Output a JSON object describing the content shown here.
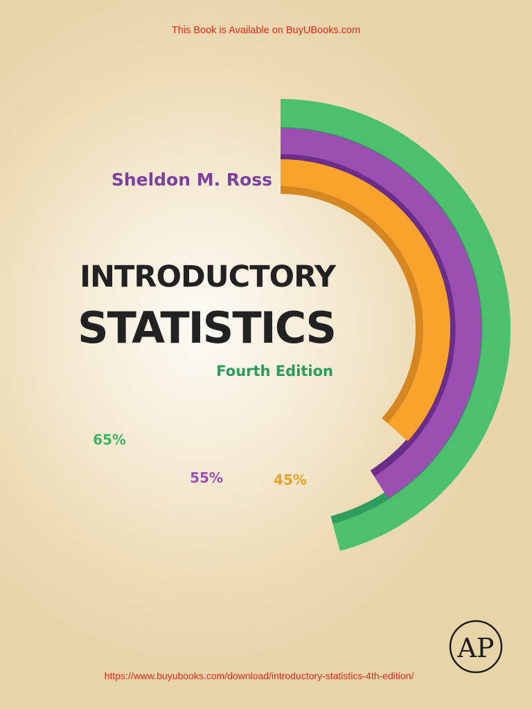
{
  "banner_top": "This Book is Available on BuyUBooks.com",
  "banner_bottom": "https://www.buyubooks.com/download/introductory-statistics-4th-edition/",
  "author": "Sheldon M. Ross",
  "title_line1": "INTRODUCTORY",
  "title_line2": "STATISTICS",
  "edition": "Fourth Edition",
  "publisher_logo_text": "AP",
  "colors": {
    "accent_red": "#e8261c",
    "green": "#4cc06d",
    "green_dark": "#2f9d5e",
    "purple": "#9b4fb0",
    "purple_dark": "#6a2d8a",
    "orange": "#f8a42c",
    "orange_dark": "#d68722",
    "title": "#222222"
  },
  "chart_data": {
    "type": "radial-bar",
    "series": [
      {
        "label": "65%",
        "value": 65,
        "color": "#4cc06d",
        "shadow": "#2f9d5e"
      },
      {
        "label": "55%",
        "value": 55,
        "color": "#9b4fb0",
        "shadow": "#6a2d8a"
      },
      {
        "label": "45%",
        "value": 45,
        "color": "#f8a42c",
        "shadow": "#d68722"
      }
    ]
  }
}
